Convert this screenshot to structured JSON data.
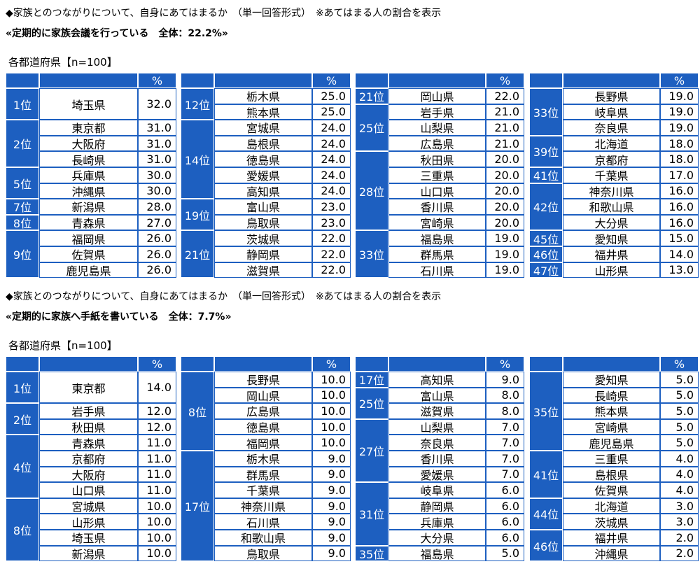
{
  "sections": [
    {
      "title": "◆家族とのつながりについて、自身にあてはまるか　（単一回答形式）　※あてはまる人の割合を表示",
      "subtitle": "«定期的に家族会議を行っている　全体：22.2%»",
      "label": "各都道府県【n=100】",
      "tables": [
        {
          "unit": "%",
          "groups": [
            {
              "rank": "1位",
              "rows": [
                {
                  "pref": "埼玉県",
                  "value": "32.0"
                }
              ]
            },
            {
              "rank": "2位",
              "rows": [
                {
                  "pref": "東京都",
                  "value": "31.0"
                },
                {
                  "pref": "大阪府",
                  "value": "31.0"
                },
                {
                  "pref": "長崎県",
                  "value": "31.0"
                }
              ]
            },
            {
              "rank": "5位",
              "rows": [
                {
                  "pref": "兵庫県",
                  "value": "30.0"
                },
                {
                  "pref": "沖縄県",
                  "value": "30.0"
                }
              ]
            },
            {
              "rank": "7位",
              "rows": [
                {
                  "pref": "新潟県",
                  "value": "28.0"
                }
              ]
            },
            {
              "rank": "8位",
              "rows": [
                {
                  "pref": "青森県",
                  "value": "27.0"
                }
              ]
            },
            {
              "rank": "9位",
              "rows": [
                {
                  "pref": "福岡県",
                  "value": "26.0"
                },
                {
                  "pref": "佐賀県",
                  "value": "26.0"
                },
                {
                  "pref": "鹿児島県",
                  "value": "26.0"
                }
              ]
            }
          ]
        },
        {
          "unit": "%",
          "groups": [
            {
              "rank": "12位",
              "rows": [
                {
                  "pref": "栃木県",
                  "value": "25.0"
                },
                {
                  "pref": "熊本県",
                  "value": "25.0"
                }
              ]
            },
            {
              "rank": "14位",
              "rows": [
                {
                  "pref": "宮城県",
                  "value": "24.0"
                },
                {
                  "pref": "島根県",
                  "value": "24.0"
                },
                {
                  "pref": "徳島県",
                  "value": "24.0"
                },
                {
                  "pref": "愛媛県",
                  "value": "24.0"
                },
                {
                  "pref": "高知県",
                  "value": "24.0"
                }
              ]
            },
            {
              "rank": "19位",
              "rows": [
                {
                  "pref": "富山県",
                  "value": "23.0"
                },
                {
                  "pref": "鳥取県",
                  "value": "23.0"
                }
              ]
            },
            {
              "rank": "21位",
              "rows": [
                {
                  "pref": "茨城県",
                  "value": "22.0"
                },
                {
                  "pref": "静岡県",
                  "value": "22.0"
                },
                {
                  "pref": "滋賀県",
                  "value": "22.0"
                }
              ]
            }
          ]
        },
        {
          "unit": "%",
          "groups": [
            {
              "rank": "21位",
              "rows": [
                {
                  "pref": "岡山県",
                  "value": "22.0"
                }
              ]
            },
            {
              "rank": "25位",
              "rows": [
                {
                  "pref": "岩手県",
                  "value": "21.0"
                },
                {
                  "pref": "山梨県",
                  "value": "21.0"
                },
                {
                  "pref": "広島県",
                  "value": "21.0"
                }
              ]
            },
            {
              "rank": "28位",
              "rows": [
                {
                  "pref": "秋田県",
                  "value": "20.0"
                },
                {
                  "pref": "三重県",
                  "value": "20.0"
                },
                {
                  "pref": "山口県",
                  "value": "20.0"
                },
                {
                  "pref": "香川県",
                  "value": "20.0"
                },
                {
                  "pref": "宮崎県",
                  "value": "20.0"
                }
              ]
            },
            {
              "rank": "33位",
              "rows": [
                {
                  "pref": "福島県",
                  "value": "19.0"
                },
                {
                  "pref": "群馬県",
                  "value": "19.0"
                },
                {
                  "pref": "石川県",
                  "value": "19.0"
                }
              ]
            }
          ]
        },
        {
          "unit": "%",
          "groups": [
            {
              "rank": "33位",
              "rows": [
                {
                  "pref": "長野県",
                  "value": "19.0"
                },
                {
                  "pref": "岐阜県",
                  "value": "19.0"
                },
                {
                  "pref": "奈良県",
                  "value": "19.0"
                }
              ]
            },
            {
              "rank": "39位",
              "rows": [
                {
                  "pref": "北海道",
                  "value": "18.0"
                },
                {
                  "pref": "京都府",
                  "value": "18.0"
                }
              ]
            },
            {
              "rank": "41位",
              "rows": [
                {
                  "pref": "千葉県",
                  "value": "17.0"
                }
              ]
            },
            {
              "rank": "42位",
              "rows": [
                {
                  "pref": "神奈川県",
                  "value": "16.0"
                },
                {
                  "pref": "和歌山県",
                  "value": "16.0"
                },
                {
                  "pref": "大分県",
                  "value": "16.0"
                }
              ]
            },
            {
              "rank": "45位",
              "rows": [
                {
                  "pref": "愛知県",
                  "value": "15.0"
                }
              ]
            },
            {
              "rank": "46位",
              "rows": [
                {
                  "pref": "福井県",
                  "value": "14.0"
                }
              ]
            },
            {
              "rank": "47位",
              "rows": [
                {
                  "pref": "山形県",
                  "value": "13.0"
                }
              ]
            }
          ]
        }
      ]
    },
    {
      "title": "◆家族とのつながりについて、自身にあてはまるか　（単一回答形式）　※あてはまる人の割合を表示",
      "subtitle": "«定期的に家族へ手紙を書いている　全体：7.7%»",
      "label": "各都道府県【n=100】",
      "tables": [
        {
          "unit": "%",
          "groups": [
            {
              "rank": "1位",
              "rows": [
                {
                  "pref": "東京都",
                  "value": "14.0"
                }
              ]
            },
            {
              "rank": "2位",
              "rows": [
                {
                  "pref": "岩手県",
                  "value": "12.0"
                },
                {
                  "pref": "秋田県",
                  "value": "12.0"
                }
              ]
            },
            {
              "rank": "4位",
              "rows": [
                {
                  "pref": "青森県",
                  "value": "11.0"
                },
                {
                  "pref": "京都府",
                  "value": "11.0"
                },
                {
                  "pref": "大阪府",
                  "value": "11.0"
                },
                {
                  "pref": "山口県",
                  "value": "11.0"
                }
              ]
            },
            {
              "rank": "8位",
              "rows": [
                {
                  "pref": "宮城県",
                  "value": "10.0"
                },
                {
                  "pref": "山形県",
                  "value": "10.0"
                },
                {
                  "pref": "埼玉県",
                  "value": "10.0"
                },
                {
                  "pref": "新潟県",
                  "value": "10.0"
                }
              ]
            }
          ]
        },
        {
          "unit": "%",
          "groups": [
            {
              "rank": "8位",
              "rows": [
                {
                  "pref": "長野県",
                  "value": "10.0"
                },
                {
                  "pref": "岡山県",
                  "value": "10.0"
                },
                {
                  "pref": "広島県",
                  "value": "10.0"
                },
                {
                  "pref": "徳島県",
                  "value": "10.0"
                },
                {
                  "pref": "福岡県",
                  "value": "10.0"
                }
              ]
            },
            {
              "rank": "17位",
              "rows": [
                {
                  "pref": "栃木県",
                  "value": "9.0"
                },
                {
                  "pref": "群馬県",
                  "value": "9.0"
                },
                {
                  "pref": "千葉県",
                  "value": "9.0"
                },
                {
                  "pref": "神奈川県",
                  "value": "9.0"
                },
                {
                  "pref": "石川県",
                  "value": "9.0"
                },
                {
                  "pref": "和歌山県",
                  "value": "9.0"
                },
                {
                  "pref": "鳥取県",
                  "value": "9.0"
                }
              ]
            }
          ]
        },
        {
          "unit": "%",
          "groups": [
            {
              "rank": "17位",
              "rows": [
                {
                  "pref": "高知県",
                  "value": "9.0"
                }
              ]
            },
            {
              "rank": "25位",
              "rows": [
                {
                  "pref": "富山県",
                  "value": "8.0"
                },
                {
                  "pref": "滋賀県",
                  "value": "8.0"
                }
              ]
            },
            {
              "rank": "27位",
              "rows": [
                {
                  "pref": "山梨県",
                  "value": "7.0"
                },
                {
                  "pref": "奈良県",
                  "value": "7.0"
                },
                {
                  "pref": "香川県",
                  "value": "7.0"
                },
                {
                  "pref": "愛媛県",
                  "value": "7.0"
                }
              ]
            },
            {
              "rank": "31位",
              "rows": [
                {
                  "pref": "岐阜県",
                  "value": "6.0"
                },
                {
                  "pref": "静岡県",
                  "value": "6.0"
                },
                {
                  "pref": "兵庫県",
                  "value": "6.0"
                },
                {
                  "pref": "大分県",
                  "value": "6.0"
                }
              ]
            },
            {
              "rank": "35位",
              "rows": [
                {
                  "pref": "福島県",
                  "value": "5.0"
                }
              ]
            }
          ]
        },
        {
          "unit": "%",
          "groups": [
            {
              "rank": "35位",
              "rows": [
                {
                  "pref": "愛知県",
                  "value": "5.0"
                },
                {
                  "pref": "長崎県",
                  "value": "5.0"
                },
                {
                  "pref": "熊本県",
                  "value": "5.0"
                },
                {
                  "pref": "宮崎県",
                  "value": "5.0"
                },
                {
                  "pref": "鹿児島県",
                  "value": "5.0"
                }
              ]
            },
            {
              "rank": "41位",
              "rows": [
                {
                  "pref": "三重県",
                  "value": "4.0"
                },
                {
                  "pref": "島根県",
                  "value": "4.0"
                },
                {
                  "pref": "佐賀県",
                  "value": "4.0"
                }
              ]
            },
            {
              "rank": "44位",
              "rows": [
                {
                  "pref": "北海道",
                  "value": "3.0"
                },
                {
                  "pref": "茨城県",
                  "value": "3.0"
                }
              ]
            },
            {
              "rank": "46位",
              "rows": [
                {
                  "pref": "福井県",
                  "value": "2.0"
                },
                {
                  "pref": "沖縄県",
                  "value": "2.0"
                }
              ]
            }
          ]
        }
      ]
    }
  ]
}
